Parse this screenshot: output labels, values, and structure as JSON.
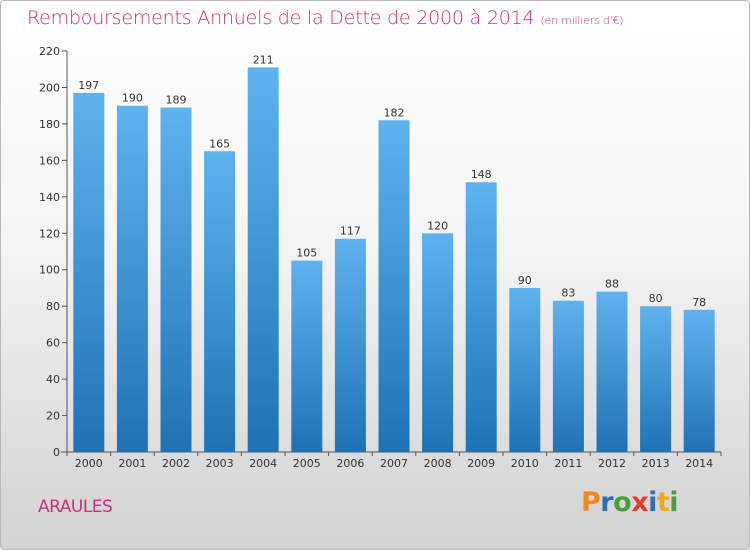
{
  "title": "Remboursements Annuels de la Dette de 2000 à 2014",
  "subtitle": "(en milliers d'€)",
  "commune": "ARAULES",
  "logo": {
    "letters": [
      "P",
      "r",
      "o",
      "x",
      "i",
      "t",
      "i"
    ],
    "colors": [
      "#f08a1c",
      "#2f6fb4",
      "#4b9e3a",
      "#e23a2b",
      "#2f6fb4",
      "#f0a81c",
      "#4b9e3a"
    ]
  },
  "colors": {
    "accent": "#c8307d",
    "bar_top": "#5eb3ee",
    "bar_bottom": "#1f73b5"
  },
  "chart_data": {
    "type": "bar",
    "categories": [
      "2000",
      "2001",
      "2002",
      "2003",
      "2004",
      "2005",
      "2006",
      "2007",
      "2008",
      "2009",
      "2010",
      "2011",
      "2012",
      "2013",
      "2014"
    ],
    "values": [
      197,
      190,
      189,
      165,
      211,
      105,
      117,
      182,
      120,
      148,
      90,
      83,
      88,
      80,
      78
    ],
    "title": "Remboursements Annuels de la Dette de 2000 à 2014",
    "xlabel": "",
    "ylabel": "",
    "ylim": [
      0,
      220
    ],
    "yticks": [
      0,
      20,
      40,
      60,
      80,
      100,
      120,
      140,
      160,
      180,
      200,
      220
    ],
    "grid": false,
    "data_labels": true
  }
}
